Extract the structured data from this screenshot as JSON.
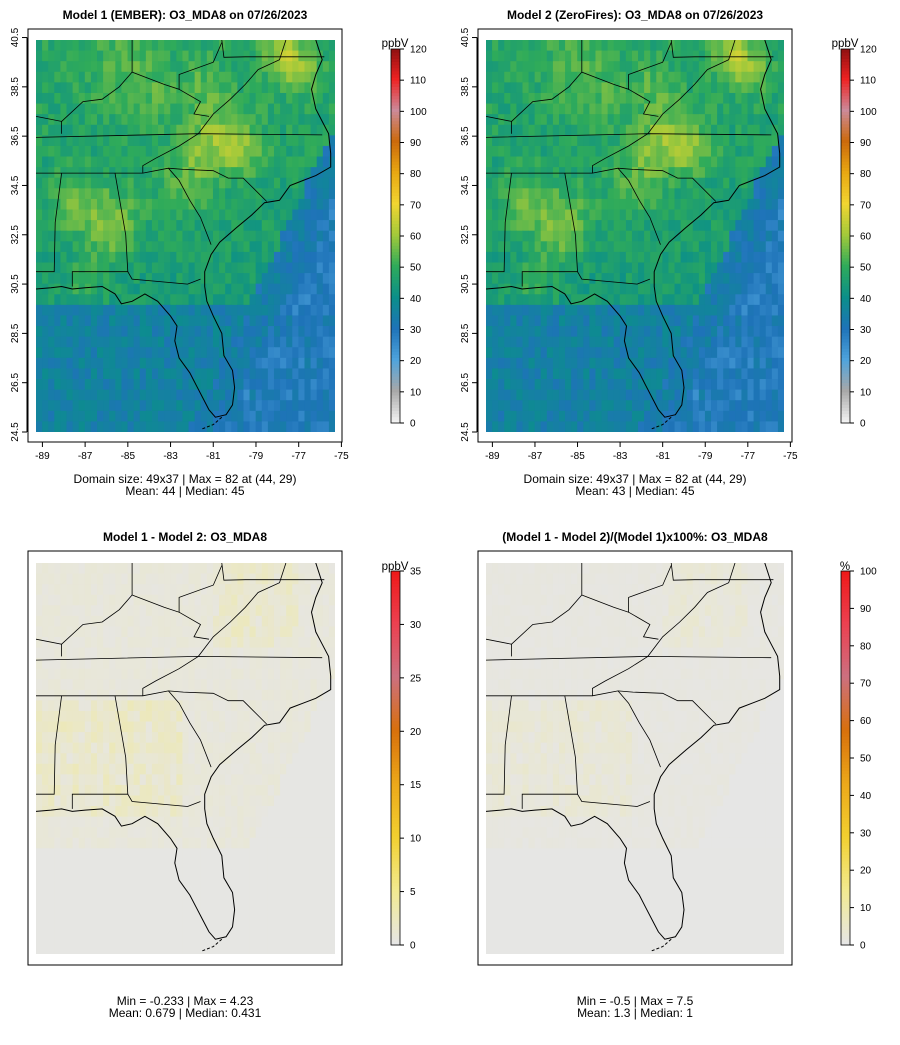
{
  "panels": [
    {
      "title": "Model 1 (EMBER): O3_MDA8 on 07/26/2023",
      "field": "ember",
      "show_axes": true,
      "x_ticks": [
        "-89",
        "-87",
        "-85",
        "-83",
        "-81",
        "-79",
        "-77",
        "-75"
      ],
      "y_ticks": [
        "24.5",
        "26.5",
        "28.5",
        "30.5",
        "32.5",
        "34.5",
        "36.5",
        "38.5",
        "40.5"
      ],
      "colorbar": {
        "unit": "ppbV",
        "ticks": [
          "0",
          "10",
          "20",
          "30",
          "40",
          "50",
          "60",
          "70",
          "80",
          "90",
          "100",
          "110",
          "120"
        ],
        "max": 120,
        "palette": "ozone"
      },
      "stats_line1": "Domain size: 49x37 | Max = 82 at (44, 29)",
      "stats_line2": "Mean: 44 |  Median: 45"
    },
    {
      "title": "Model 2 (ZeroFires): O3_MDA8 on 07/26/2023",
      "field": "zerofires",
      "show_axes": true,
      "x_ticks": [
        "-89",
        "-87",
        "-85",
        "-83",
        "-81",
        "-79",
        "-77",
        "-75"
      ],
      "y_ticks": [
        "24.5",
        "26.5",
        "28.5",
        "30.5",
        "32.5",
        "34.5",
        "36.5",
        "38.5",
        "40.5"
      ],
      "colorbar": {
        "unit": "ppbV",
        "ticks": [
          "0",
          "10",
          "20",
          "30",
          "40",
          "50",
          "60",
          "70",
          "80",
          "90",
          "100",
          "110",
          "120"
        ],
        "max": 120,
        "palette": "ozone"
      },
      "stats_line1": "Domain size: 49x37 | Max = 82 at (44, 29)",
      "stats_line2": "Mean: 43 |  Median: 45"
    },
    {
      "title": "Model 1 - Model 2: O3_MDA8",
      "field": "diff",
      "show_axes": false,
      "colorbar": {
        "unit": "ppbV",
        "ticks": [
          "0",
          "5",
          "10",
          "15",
          "20",
          "25",
          "30",
          "35"
        ],
        "max": 35,
        "palette": "diff"
      },
      "stats_line1": "Min = -0.233 | Max = 4.23",
      "stats_line2": "Mean: 0.679 |  Median: 0.431"
    },
    {
      "title": "(Model 1 - Model 2)/(Model 1)x100%: O3_MDA8",
      "field": "pct",
      "show_axes": false,
      "colorbar": {
        "unit": "%",
        "ticks": [
          "0",
          "10",
          "20",
          "30",
          "40",
          "50",
          "60",
          "70",
          "80",
          "90",
          "100"
        ],
        "max": 100,
        "palette": "diff"
      },
      "stats_line1": "Min = -0.5 | Max = 7.5",
      "stats_line2": "Mean: 1.3 |  Median: 1"
    }
  ],
  "palette_colors": {
    "ozone": [
      "#f2f2f2",
      "#a8a8a8",
      "#4ea3dd",
      "#1e73b8",
      "#0b8f8a",
      "#2fab5a",
      "#a3c93a",
      "#f2d531",
      "#e8a712",
      "#cc6a0c",
      "#cc8a9a",
      "#ee2222",
      "#8b1010"
    ],
    "diff": [
      "#e6e6e6",
      "#f2ea90",
      "#f2d030",
      "#eca81a",
      "#d8700c",
      "#cc7080",
      "#ec4050",
      "#ee1818"
    ]
  }
}
